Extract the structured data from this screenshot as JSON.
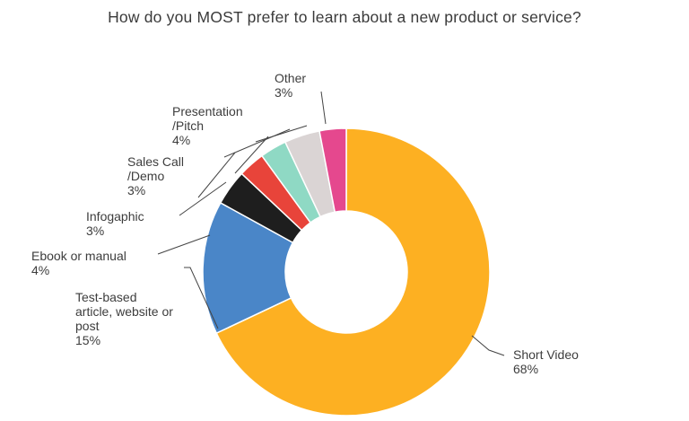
{
  "chart_data": {
    "type": "pie",
    "style": "donut",
    "title": "How do you MOST prefer to learn about a new product or service?",
    "slices": [
      {
        "label": "Short Video",
        "value": 68,
        "value_label": "68%",
        "color": "#FDB022",
        "label_lines": [
          "Short Video",
          "68%"
        ]
      },
      {
        "label": "Test-based article, website or post",
        "value": 15,
        "value_label": "15%",
        "color": "#4A86C8",
        "label_lines": [
          "Test-based",
          "article, website or",
          "post",
          "15%"
        ]
      },
      {
        "label": "Ebook or manual",
        "value": 4,
        "value_label": "4%",
        "color": "#1E1E1E",
        "label_lines": [
          "Ebook or manual",
          "4%"
        ]
      },
      {
        "label": "Infogaphic",
        "value": 3,
        "value_label": "3%",
        "color": "#E8443A",
        "label_lines": [
          "Infogaphic",
          "3%"
        ]
      },
      {
        "label": "Sales Call /Demo",
        "value": 3,
        "value_label": "3%",
        "color": "#8FD9C4",
        "label_lines": [
          "Sales Call",
          "/Demo",
          "3%"
        ]
      },
      {
        "label": "Presentation /Pitch",
        "value": 4,
        "value_label": "4%",
        "color": "#DAD4D4",
        "label_lines": [
          "Presentation",
          "/Pitch",
          "4%"
        ]
      },
      {
        "label": "Other",
        "value": 3,
        "value_label": "3%",
        "color": "#E5488E",
        "label_lines": [
          "Other",
          "3%"
        ]
      }
    ],
    "legend": "none",
    "label_placement": "outside-with-leader-lines"
  }
}
